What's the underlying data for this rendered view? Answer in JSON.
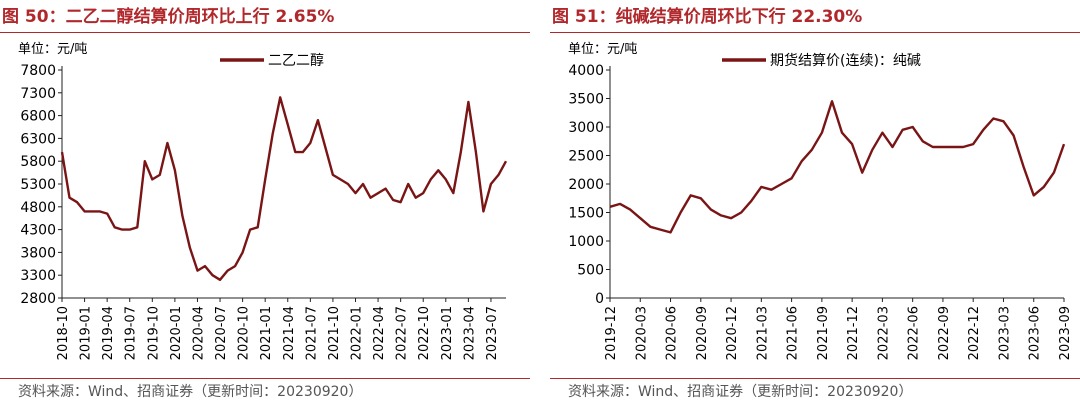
{
  "colors": {
    "accent": "#B0282B",
    "line": "#7A1516",
    "text": "#000000"
  },
  "source": "资料来源：Wind、招商证券（更新时间：20230920）",
  "chart_data": [
    {
      "type": "line",
      "figure_title": "图 50：二乙二醇结算价周环比上行 2.65%",
      "unit_label": "单位：元/吨",
      "ylim": [
        2800,
        7800
      ],
      "yticks": [
        2800,
        3300,
        3800,
        4300,
        4800,
        5300,
        5800,
        6300,
        6800,
        7300,
        7800
      ],
      "xlim": [
        "2018-10",
        "2023-09"
      ],
      "xticks": [
        "2018-10",
        "2019-01",
        "2019-04",
        "2019-07",
        "2019-10",
        "2020-01",
        "2020-04",
        "2020-07",
        "2020-10",
        "2021-01",
        "2021-04",
        "2021-07",
        "2021-10",
        "2022-01",
        "2022-04",
        "2022-07",
        "2022-10",
        "2023-01",
        "2023-04",
        "2023-07"
      ],
      "legend_position": "top",
      "grid": false,
      "series": [
        {
          "name": "二乙二醇",
          "x": [
            "2018-10",
            "2018-11",
            "2018-12",
            "2019-01",
            "2019-02",
            "2019-03",
            "2019-04",
            "2019-05",
            "2019-06",
            "2019-07",
            "2019-08",
            "2019-09",
            "2019-10",
            "2019-11",
            "2019-12",
            "2020-01",
            "2020-02",
            "2020-03",
            "2020-04",
            "2020-05",
            "2020-06",
            "2020-07",
            "2020-08",
            "2020-09",
            "2020-10",
            "2020-11",
            "2020-12",
            "2021-01",
            "2021-02",
            "2021-03",
            "2021-04",
            "2021-05",
            "2021-06",
            "2021-07",
            "2021-08",
            "2021-09",
            "2021-10",
            "2021-11",
            "2021-12",
            "2022-01",
            "2022-02",
            "2022-03",
            "2022-04",
            "2022-05",
            "2022-06",
            "2022-07",
            "2022-08",
            "2022-09",
            "2022-10",
            "2022-11",
            "2022-12",
            "2023-01",
            "2023-02",
            "2023-03",
            "2023-04",
            "2023-05",
            "2023-06",
            "2023-07",
            "2023-08",
            "2023-09"
          ],
          "values": [
            6000,
            5000,
            4900,
            4700,
            4700,
            4700,
            4650,
            4350,
            4300,
            4300,
            4350,
            5800,
            5400,
            5500,
            6200,
            5600,
            4600,
            3900,
            3400,
            3500,
            3300,
            3200,
            3400,
            3500,
            3800,
            4300,
            4350,
            5400,
            6400,
            7200,
            6600,
            6000,
            6000,
            6200,
            6700,
            6100,
            5500,
            5400,
            5300,
            5100,
            5300,
            5000,
            5100,
            5200,
            4950,
            4900,
            5300,
            5000,
            5100,
            5400,
            5600,
            5400,
            5100,
            6000,
            7100,
            6000,
            4700,
            5300,
            5500,
            5800
          ]
        }
      ]
    },
    {
      "type": "line",
      "figure_title": "图 51：纯碱结算价周环比下行 22.30%",
      "unit_label": "单位：元/吨",
      "ylim": [
        0,
        4000
      ],
      "yticks": [
        0,
        500,
        1000,
        1500,
        2000,
        2500,
        3000,
        3500,
        4000
      ],
      "xlim": [
        "2019-12",
        "2023-09"
      ],
      "xticks": [
        "2019-12",
        "2020-03",
        "2020-06",
        "2020-09",
        "2020-12",
        "2021-03",
        "2021-06",
        "2021-09",
        "2021-12",
        "2022-03",
        "2022-06",
        "2022-09",
        "2022-12",
        "2023-03",
        "2023-06",
        "2023-09"
      ],
      "legend_position": "top",
      "grid": false,
      "series": [
        {
          "name": "期货结算价(连续)：纯碱",
          "x": [
            "2019-12",
            "2020-01",
            "2020-02",
            "2020-03",
            "2020-04",
            "2020-05",
            "2020-06",
            "2020-07",
            "2020-08",
            "2020-09",
            "2020-10",
            "2020-11",
            "2020-12",
            "2021-01",
            "2021-02",
            "2021-03",
            "2021-04",
            "2021-05",
            "2021-06",
            "2021-07",
            "2021-08",
            "2021-09",
            "2021-10",
            "2021-11",
            "2021-12",
            "2022-01",
            "2022-02",
            "2022-03",
            "2022-04",
            "2022-05",
            "2022-06",
            "2022-07",
            "2022-08",
            "2022-09",
            "2022-10",
            "2022-11",
            "2022-12",
            "2023-01",
            "2023-02",
            "2023-03",
            "2023-04",
            "2023-05",
            "2023-06",
            "2023-07",
            "2023-08",
            "2023-09"
          ],
          "values": [
            1600,
            1650,
            1550,
            1400,
            1250,
            1200,
            1150,
            1500,
            1800,
            1750,
            1550,
            1450,
            1400,
            1500,
            1700,
            1950,
            1900,
            2000,
            2100,
            2400,
            2600,
            2900,
            3450,
            2900,
            2700,
            2200,
            2600,
            2900,
            2650,
            2950,
            3000,
            2750,
            2650,
            2650,
            2650,
            2650,
            2700,
            2950,
            3150,
            3100,
            2850,
            2300,
            1800,
            1950,
            2200,
            2700
          ]
        }
      ]
    }
  ]
}
